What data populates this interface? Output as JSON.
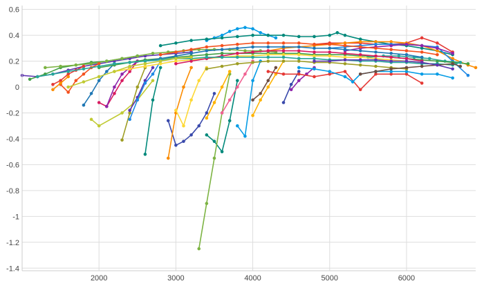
{
  "chart_data": {
    "type": "line",
    "title": "",
    "xlabel": "",
    "ylabel": "",
    "xlim": [
      1000,
      6900
    ],
    "ylim": [
      -1.42,
      0.63
    ],
    "grid": true,
    "legend": "none",
    "x_ticks": [
      "2000",
      "3000",
      "4000",
      "5000",
      "6000"
    ],
    "x_tick_values": [
      2000,
      3000,
      4000,
      5000,
      6000
    ],
    "y_ticks": [
      "0.6",
      "0.4",
      "0.2",
      "0",
      "-0.2",
      "-0.4",
      "-0.6",
      "-0.8",
      "-1",
      "-1.2",
      "-1.4"
    ],
    "y_tick_values": [
      0.6,
      0.4,
      0.2,
      0,
      -0.2,
      -0.4,
      -0.6,
      -0.8,
      -1,
      -1.2,
      -1.4
    ],
    "palette": [
      "#1f77b4",
      "#e53935",
      "#43a047",
      "#8e24aa",
      "#fb8c00",
      "#1e88e5",
      "#c0ca33",
      "#00897b",
      "#f4511e",
      "#3949ab",
      "#fdd835",
      "#6d4c41",
      "#039be5",
      "#7cb342",
      "#d81b60",
      "#5e35b1",
      "#ffb300",
      "#26a69a",
      "#f06292",
      "#9e9d24"
    ],
    "series": [
      {
        "color": "#5e35b1",
        "x": [
          1000,
          1200,
          1400,
          1600,
          1800,
          2000,
          2200,
          2400,
          2600,
          2800,
          3000,
          3200
        ],
        "y": [
          0.09,
          0.08,
          0.1,
          0.13,
          0.16,
          0.18,
          0.2,
          0.22,
          0.24,
          0.25,
          0.26,
          0.27
        ]
      },
      {
        "color": "#43a047",
        "x": [
          1100,
          1300,
          1500,
          1700,
          1900,
          2100,
          2300,
          2500
        ],
        "y": [
          0.06,
          0.1,
          0.15,
          0.17,
          0.19,
          0.2,
          0.22,
          0.24
        ]
      },
      {
        "color": "#7cb342",
        "x": [
          1300,
          1500,
          1700,
          1900,
          2100,
          2300,
          2500,
          2700,
          2900,
          3100,
          3300,
          3500,
          3700,
          3900,
          4100,
          4300
        ],
        "y": [
          0.15,
          0.16,
          0.17,
          0.18,
          0.2,
          0.22,
          0.24,
          0.26,
          0.27,
          0.28,
          0.29,
          0.29,
          0.29,
          0.28,
          0.28,
          0.27
        ]
      },
      {
        "color": "#039be5",
        "x": [
          3400,
          3500,
          3600,
          3700,
          3800,
          3900,
          4000,
          4100,
          4200,
          4300
        ],
        "y": [
          0.36,
          0.38,
          0.4,
          0.43,
          0.45,
          0.46,
          0.45,
          0.42,
          0.4,
          0.38
        ]
      },
      {
        "color": "#00897b",
        "x": [
          2800,
          3000,
          3200,
          3400,
          3600,
          3800,
          4000,
          4200,
          4400,
          4600,
          4800,
          5000,
          5100,
          5200,
          5400,
          5600,
          5800,
          6000,
          6200,
          6400,
          6600
        ],
        "y": [
          0.32,
          0.34,
          0.36,
          0.37,
          0.38,
          0.39,
          0.4,
          0.4,
          0.4,
          0.39,
          0.39,
          0.4,
          0.42,
          0.4,
          0.37,
          0.35,
          0.33,
          0.32,
          0.3,
          0.28,
          0.25
        ]
      },
      {
        "color": "#e53935",
        "x": [
          4800,
          5000,
          5200,
          5400,
          5600,
          5800,
          6000,
          6200,
          6400,
          6600
        ],
        "y": [
          0.33,
          0.34,
          0.34,
          0.34,
          0.33,
          0.33,
          0.34,
          0.38,
          0.34,
          0.27
        ]
      },
      {
        "color": "#fb8c00",
        "x": [
          4200,
          4400,
          4600,
          4800,
          5000,
          5200,
          5400,
          5600,
          5800,
          6000,
          6200,
          6400,
          6600,
          6800,
          6900
        ],
        "y": [
          0.28,
          0.3,
          0.31,
          0.32,
          0.33,
          0.34,
          0.35,
          0.35,
          0.35,
          0.34,
          0.32,
          0.28,
          0.22,
          0.17,
          0.15
        ]
      },
      {
        "color": "#1e88e5",
        "x": [
          5000,
          5200,
          5400,
          5600,
          5800,
          6000,
          6200,
          6400,
          6600,
          6800
        ],
        "y": [
          0.3,
          0.31,
          0.32,
          0.33,
          0.33,
          0.33,
          0.32,
          0.31,
          0.2,
          0.09
        ]
      },
      {
        "color": "#8e24aa",
        "x": [
          5200,
          5400,
          5600,
          5800,
          6000,
          6200,
          6400,
          6600
        ],
        "y": [
          0.28,
          0.3,
          0.31,
          0.32,
          0.33,
          0.32,
          0.3,
          0.26
        ]
      },
      {
        "color": "#26a69a",
        "x": [
          5500,
          5700,
          5900,
          6100,
          6300,
          6500,
          6700
        ],
        "y": [
          0.23,
          0.24,
          0.24,
          0.23,
          0.22,
          0.2,
          0.19
        ]
      },
      {
        "color": "#3949ab",
        "x": [
          2900,
          3000,
          3100,
          3200,
          3300,
          3400,
          3500
        ],
        "y": [
          -0.26,
          -0.45,
          -0.42,
          -0.37,
          -0.3,
          -0.2,
          -0.05
        ]
      },
      {
        "color": "#00897b",
        "x": [
          3400,
          3500,
          3600,
          3700,
          3800
        ],
        "y": [
          -0.37,
          -0.42,
          -0.5,
          -0.26,
          0.05
        ]
      },
      {
        "color": "#7cb342",
        "x": [
          3300,
          3400,
          3500,
          3600,
          3700
        ],
        "y": [
          -1.25,
          -0.9,
          -0.55,
          -0.2,
          0.1
        ]
      },
      {
        "color": "#c0ca33",
        "x": [
          1900,
          2000,
          2300,
          2500,
          2700
        ],
        "y": [
          -0.25,
          -0.3,
          -0.2,
          -0.1,
          0.05
        ]
      },
      {
        "color": "#9e9d24",
        "x": [
          2300,
          2400,
          2500,
          2600
        ],
        "y": [
          -0.41,
          -0.2,
          0,
          0.15
        ]
      },
      {
        "color": "#00897b",
        "x": [
          2600,
          2700,
          2800
        ],
        "y": [
          -0.52,
          -0.1,
          0.15
        ]
      },
      {
        "color": "#fb8c00",
        "x": [
          2900,
          3000,
          3100,
          3200
        ],
        "y": [
          -0.55,
          -0.2,
          0,
          0.15
        ]
      },
      {
        "color": "#039be5",
        "x": [
          3800,
          3900,
          4000,
          4100
        ],
        "y": [
          -0.3,
          -0.38,
          0.05,
          0.2
        ]
      },
      {
        "color": "#fdd835",
        "x": [
          3000,
          3100,
          3200,
          3300,
          3400
        ],
        "y": [
          -0.18,
          -0.3,
          -0.1,
          0.05,
          0.15
        ]
      },
      {
        "color": "#d81b60",
        "x": [
          2000,
          2100,
          2200,
          2300,
          2400,
          2500
        ],
        "y": [
          -0.12,
          -0.15,
          -0.05,
          0.05,
          0.12,
          0.2
        ]
      },
      {
        "color": "#1f77b4",
        "x": [
          1800,
          1900,
          2000,
          2100,
          2200
        ],
        "y": [
          -0.14,
          -0.05,
          0.05,
          0.12,
          0.18
        ]
      },
      {
        "color": "#f4511e",
        "x": [
          1500,
          1600,
          1700,
          1800,
          1900,
          2000
        ],
        "y": [
          0.02,
          -0.04,
          0.05,
          0.1,
          0.15,
          0.18
        ]
      },
      {
        "color": "#e53935",
        "x": [
          1400,
          1500,
          1600,
          1700,
          1800
        ],
        "y": [
          0.02,
          0.05,
          0.1,
          0.13,
          0.16
        ]
      },
      {
        "color": "#fb8c00",
        "x": [
          1400,
          1500,
          1600
        ],
        "y": [
          -0.02,
          0.03,
          0.08
        ]
      },
      {
        "color": "#8e24aa",
        "x": [
          2100,
          2200,
          2300,
          2400,
          2500
        ],
        "y": [
          -0.15,
          0,
          0.1,
          0.15,
          0.2
        ]
      },
      {
        "color": "#5e35b1",
        "x": [
          2400,
          2500,
          2600,
          2700
        ],
        "y": [
          -0.18,
          -0.08,
          0.05,
          0.15
        ]
      },
      {
        "color": "#1e88e5",
        "x": [
          2400,
          2500,
          2600,
          2700,
          2800
        ],
        "y": [
          -0.25,
          -0.1,
          0.03,
          0.1,
          0.2
        ]
      },
      {
        "color": "#f06292",
        "x": [
          3600,
          3700,
          3800,
          3900,
          4000
        ],
        "y": [
          -0.2,
          -0.1,
          0,
          0.1,
          0.2
        ]
      },
      {
        "color": "#ffb300",
        "x": [
          3400,
          3500,
          3600,
          3700
        ],
        "y": [
          -0.24,
          -0.12,
          0,
          0.12
        ]
      },
      {
        "color": "#6d4c41",
        "x": [
          4000,
          4100,
          4200,
          4300
        ],
        "y": [
          -0.1,
          -0.05,
          0.05,
          0.15
        ]
      },
      {
        "color": "#3949ab",
        "x": [
          4400,
          4500,
          4600
        ],
        "y": [
          -0.12,
          0.02,
          0.12
        ]
      },
      {
        "color": "#8e24aa",
        "x": [
          4500,
          4600,
          4700,
          4800
        ],
        "y": [
          -0.02,
          0.05,
          0.1,
          0.15
        ]
      },
      {
        "color": "#ffb300",
        "x": [
          4000,
          4100,
          4200,
          4300,
          4400
        ],
        "y": [
          -0.22,
          -0.1,
          0,
          0.1,
          0.2
        ]
      },
      {
        "color": "#43a047",
        "x": [
          2000,
          2200,
          2400,
          2600,
          2800,
          3000,
          3200,
          3400,
          3600,
          3800,
          4000,
          4200,
          4400,
          4600,
          4800,
          5000,
          5200,
          5400,
          5600,
          5800,
          6000,
          6200,
          6400,
          6600,
          6800
        ],
        "y": [
          0.15,
          0.17,
          0.19,
          0.21,
          0.22,
          0.23,
          0.24,
          0.25,
          0.26,
          0.26,
          0.26,
          0.26,
          0.26,
          0.26,
          0.25,
          0.25,
          0.25,
          0.24,
          0.24,
          0.23,
          0.22,
          0.21,
          0.2,
          0.19,
          0.18
        ]
      },
      {
        "color": "#fdd835",
        "x": [
          2200,
          2400,
          2600,
          2800,
          3000,
          3200,
          3400,
          3600,
          3800,
          4000,
          4200,
          4400,
          4600,
          4800,
          5000,
          5200,
          5400,
          5600,
          5800,
          6000,
          6200,
          6400
        ],
        "y": [
          0.12,
          0.14,
          0.16,
          0.18,
          0.2,
          0.21,
          0.22,
          0.23,
          0.24,
          0.24,
          0.25,
          0.25,
          0.25,
          0.24,
          0.24,
          0.23,
          0.23,
          0.22,
          0.21,
          0.2,
          0.19,
          0.17
        ]
      },
      {
        "color": "#1f77b4",
        "x": [
          2600,
          2800,
          3000,
          3200,
          3400,
          3600,
          3800,
          4000,
          4200,
          4400,
          4600,
          4800,
          5000,
          5200,
          5400,
          5600,
          5800,
          6000,
          6200
        ],
        "y": [
          0.2,
          0.22,
          0.24,
          0.26,
          0.28,
          0.29,
          0.3,
          0.31,
          0.31,
          0.31,
          0.31,
          0.3,
          0.3,
          0.29,
          0.28,
          0.27,
          0.26,
          0.25,
          0.23
        ]
      },
      {
        "color": "#d81b60",
        "x": [
          3000,
          3200,
          3400,
          3600,
          3800,
          4000,
          4200,
          4400,
          4600,
          4800,
          5000,
          5200,
          5400,
          5600,
          5800,
          6000,
          6200
        ],
        "y": [
          0.18,
          0.2,
          0.22,
          0.24,
          0.26,
          0.27,
          0.28,
          0.28,
          0.28,
          0.27,
          0.27,
          0.26,
          0.25,
          0.24,
          0.23,
          0.22,
          0.2
        ]
      },
      {
        "color": "#e53935",
        "x": [
          4200,
          4400,
          4600,
          4800,
          5000,
          5200,
          5400,
          5600,
          5800,
          6000,
          6200
        ],
        "y": [
          0.12,
          0.1,
          0.1,
          0.08,
          0.1,
          0.12,
          -0.02,
          0.1,
          0.1,
          0.1,
          0.03
        ]
      },
      {
        "color": "#039be5",
        "x": [
          4600,
          4800,
          5000,
          5200,
          5300,
          5400,
          5600,
          5800,
          6000,
          6200,
          6400,
          6600
        ],
        "y": [
          0.15,
          0.14,
          0.12,
          0.08,
          0.04,
          0.1,
          0.12,
          0.12,
          0.12,
          0.1,
          0.1,
          0.07
        ]
      },
      {
        "color": "#26a69a",
        "x": [
          1200,
          1400,
          1600,
          1800,
          2000,
          2200,
          2400,
          2600,
          2800,
          3000,
          3200,
          3400,
          3600,
          3800,
          4000,
          4200,
          4400,
          4600,
          4800,
          5000,
          5200,
          5400,
          5600,
          5800,
          6000,
          6200,
          6400,
          6600,
          6700
        ],
        "y": [
          0.08,
          0.1,
          0.12,
          0.14,
          0.16,
          0.18,
          0.19,
          0.2,
          0.21,
          0.22,
          0.22,
          0.23,
          0.23,
          0.23,
          0.23,
          0.23,
          0.23,
          0.22,
          0.22,
          0.21,
          0.21,
          0.2,
          0.2,
          0.19,
          0.19,
          0.18,
          0.18,
          0.17,
          0.19
        ]
      },
      {
        "color": "#f4511e",
        "x": [
          2800,
          3000,
          3200,
          3400,
          3600,
          3800,
          4000,
          4200,
          4400,
          4600,
          4800,
          5000,
          5200,
          5400,
          5600,
          5800,
          6000,
          6200,
          6400
        ],
        "y": [
          0.25,
          0.27,
          0.29,
          0.31,
          0.32,
          0.33,
          0.34,
          0.34,
          0.34,
          0.34,
          0.33,
          0.33,
          0.32,
          0.31,
          0.3,
          0.29,
          0.28,
          0.27,
          0.25
        ]
      },
      {
        "color": "#9e9d24",
        "x": [
          3400,
          3600,
          3800,
          4000,
          4200,
          4400,
          4600,
          4800,
          5000,
          5200,
          5400,
          5600,
          5800,
          6000
        ],
        "y": [
          0.14,
          0.16,
          0.18,
          0.19,
          0.2,
          0.2,
          0.2,
          0.19,
          0.19,
          0.18,
          0.17,
          0.16,
          0.15,
          0.14
        ]
      },
      {
        "color": "#6d4c41",
        "x": [
          5400,
          5600,
          5800,
          6000,
          6200,
          6400,
          6600,
          6700
        ],
        "y": [
          0.1,
          0.12,
          0.14,
          0.15,
          0.16,
          0.17,
          0.18,
          0.16
        ]
      },
      {
        "color": "#c0ca33",
        "x": [
          1600,
          1800,
          2000,
          2200,
          2400,
          2600,
          2800,
          3000,
          3200
        ],
        "y": [
          0.0,
          0.04,
          0.08,
          0.12,
          0.16,
          0.18,
          0.2,
          0.22,
          0.23
        ]
      },
      {
        "color": "#5e35b1",
        "x": [
          4800,
          5000,
          5200,
          5400,
          5600,
          5800,
          6000,
          6200,
          6400,
          6600
        ],
        "y": [
          0.2,
          0.2,
          0.21,
          0.21,
          0.21,
          0.2,
          0.2,
          0.19,
          0.17,
          0.14
        ]
      }
    ]
  }
}
